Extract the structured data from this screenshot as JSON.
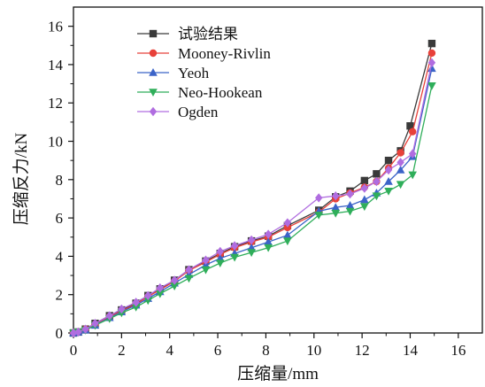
{
  "chart_data": {
    "type": "line",
    "xlabel": "压缩量/mm",
    "ylabel": "压缩反力/kN",
    "xlim": [
      0,
      17
    ],
    "ylim": [
      0,
      17
    ],
    "xticks": [
      0,
      2,
      4,
      6,
      8,
      10,
      12,
      14,
      16
    ],
    "yticks": [
      0,
      2,
      4,
      6,
      8,
      10,
      12,
      14,
      16
    ],
    "legend_position": "top-left",
    "grid": false,
    "series": [
      {
        "name": "试验结果",
        "color": "#3a3a3a",
        "marker": "square",
        "points": [
          [
            0,
            0
          ],
          [
            0.2,
            0.05
          ],
          [
            0.5,
            0.2
          ],
          [
            0.9,
            0.5
          ],
          [
            1.5,
            0.9
          ],
          [
            2.0,
            1.2
          ],
          [
            2.6,
            1.55
          ],
          [
            3.1,
            1.95
          ],
          [
            3.6,
            2.3
          ],
          [
            4.2,
            2.75
          ],
          [
            4.8,
            3.3
          ],
          [
            5.5,
            3.75
          ],
          [
            6.1,
            4.15
          ],
          [
            6.7,
            4.5
          ],
          [
            7.4,
            4.8
          ],
          [
            8.1,
            5.05
          ],
          [
            8.9,
            5.6
          ],
          [
            10.2,
            6.4
          ],
          [
            10.9,
            7.1
          ],
          [
            11.5,
            7.4
          ],
          [
            12.1,
            7.95
          ],
          [
            12.6,
            8.3
          ],
          [
            13.1,
            9.0
          ],
          [
            13.6,
            9.5
          ],
          [
            14.0,
            10.8
          ],
          [
            14.9,
            15.1
          ]
        ]
      },
      {
        "name": "Mooney-Rivlin",
        "color": "#e8413a",
        "marker": "circle",
        "points": [
          [
            0,
            0
          ],
          [
            0.2,
            0.05
          ],
          [
            0.5,
            0.2
          ],
          [
            0.9,
            0.45
          ],
          [
            1.5,
            0.85
          ],
          [
            2.0,
            1.15
          ],
          [
            2.6,
            1.5
          ],
          [
            3.1,
            1.9
          ],
          [
            3.6,
            2.25
          ],
          [
            4.2,
            2.7
          ],
          [
            4.8,
            3.25
          ],
          [
            5.5,
            3.7
          ],
          [
            6.1,
            4.1
          ],
          [
            6.7,
            4.45
          ],
          [
            7.4,
            4.75
          ],
          [
            8.1,
            5.0
          ],
          [
            8.9,
            5.5
          ],
          [
            10.2,
            6.3
          ],
          [
            10.9,
            7.0
          ],
          [
            11.5,
            7.3
          ],
          [
            12.1,
            7.6
          ],
          [
            12.6,
            7.9
          ],
          [
            13.1,
            8.6
          ],
          [
            13.6,
            9.4
          ],
          [
            14.1,
            10.5
          ],
          [
            14.9,
            14.6
          ]
        ]
      },
      {
        "name": "Yeoh",
        "color": "#3b63c8",
        "marker": "triangle-up",
        "points": [
          [
            0,
            0
          ],
          [
            0.2,
            0.05
          ],
          [
            0.5,
            0.15
          ],
          [
            0.9,
            0.4
          ],
          [
            1.5,
            0.8
          ],
          [
            2.0,
            1.1
          ],
          [
            2.6,
            1.45
          ],
          [
            3.1,
            1.8
          ],
          [
            3.6,
            2.15
          ],
          [
            4.2,
            2.6
          ],
          [
            4.8,
            3.05
          ],
          [
            5.5,
            3.55
          ],
          [
            6.1,
            3.9
          ],
          [
            6.7,
            4.15
          ],
          [
            7.4,
            4.45
          ],
          [
            8.1,
            4.75
          ],
          [
            8.9,
            5.1
          ],
          [
            10.2,
            6.35
          ],
          [
            10.9,
            6.55
          ],
          [
            11.5,
            6.65
          ],
          [
            12.1,
            6.95
          ],
          [
            12.6,
            7.3
          ],
          [
            13.1,
            7.9
          ],
          [
            13.6,
            8.5
          ],
          [
            14.1,
            9.2
          ],
          [
            14.9,
            13.8
          ]
        ]
      },
      {
        "name": "Neo-Hookean",
        "color": "#2fae5a",
        "marker": "triangle-down",
        "points": [
          [
            0,
            0
          ],
          [
            0.2,
            0.05
          ],
          [
            0.5,
            0.15
          ],
          [
            0.9,
            0.4
          ],
          [
            1.5,
            0.75
          ],
          [
            2.0,
            1.05
          ],
          [
            2.6,
            1.35
          ],
          [
            3.1,
            1.7
          ],
          [
            3.6,
            2.05
          ],
          [
            4.2,
            2.45
          ],
          [
            4.8,
            2.85
          ],
          [
            5.5,
            3.3
          ],
          [
            6.1,
            3.65
          ],
          [
            6.7,
            3.95
          ],
          [
            7.4,
            4.2
          ],
          [
            8.1,
            4.45
          ],
          [
            8.9,
            4.8
          ],
          [
            10.2,
            6.15
          ],
          [
            10.9,
            6.25
          ],
          [
            11.5,
            6.35
          ],
          [
            12.1,
            6.6
          ],
          [
            12.6,
            7.15
          ],
          [
            13.1,
            7.4
          ],
          [
            13.6,
            7.75
          ],
          [
            14.1,
            8.25
          ],
          [
            14.9,
            12.9
          ]
        ]
      },
      {
        "name": "Ogden",
        "color": "#b06de0",
        "marker": "diamond",
        "points": [
          [
            0,
            0
          ],
          [
            0.2,
            0.05
          ],
          [
            0.5,
            0.2
          ],
          [
            0.9,
            0.5
          ],
          [
            1.5,
            0.9
          ],
          [
            2.0,
            1.25
          ],
          [
            2.6,
            1.6
          ],
          [
            3.1,
            1.95
          ],
          [
            3.6,
            2.35
          ],
          [
            4.2,
            2.75
          ],
          [
            4.8,
            3.3
          ],
          [
            5.5,
            3.8
          ],
          [
            6.1,
            4.25
          ],
          [
            6.7,
            4.55
          ],
          [
            7.4,
            4.85
          ],
          [
            8.1,
            5.15
          ],
          [
            8.9,
            5.75
          ],
          [
            10.2,
            7.05
          ],
          [
            10.9,
            7.15
          ],
          [
            11.5,
            7.25
          ],
          [
            12.1,
            7.55
          ],
          [
            12.6,
            7.9
          ],
          [
            13.1,
            8.5
          ],
          [
            13.6,
            8.9
          ],
          [
            14.1,
            9.35
          ],
          [
            14.9,
            14.1
          ]
        ]
      }
    ]
  }
}
